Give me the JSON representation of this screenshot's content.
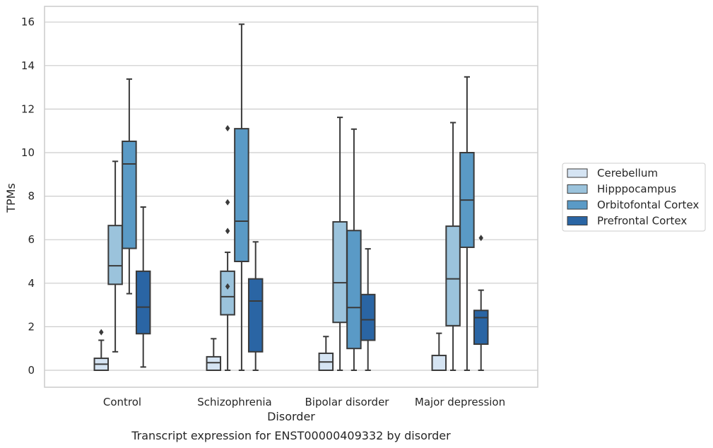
{
  "chart_data": {
    "type": "box",
    "title": "Transcript expression for ENST00000409332 by disorder",
    "xlabel": "Disorder",
    "ylabel": "TPMs",
    "ylim": [
      -0.75,
      16.7
    ],
    "yticks": [
      0,
      2,
      4,
      6,
      8,
      10,
      12,
      14,
      16
    ],
    "grid": true,
    "legend_position": "right",
    "categories": [
      "Control",
      "Schizophrenia",
      "Bipolar disorder",
      "Major depression"
    ],
    "series": [
      {
        "name": "Cerebellum",
        "color": "#d5e4f3",
        "boxes": [
          {
            "whislo": 0.0,
            "q1": 0.0,
            "med": 0.28,
            "q3": 0.55,
            "whishi": 1.38,
            "fliers": [
              1.75
            ]
          },
          {
            "whislo": 0.0,
            "q1": 0.0,
            "med": 0.35,
            "q3": 0.62,
            "whishi": 1.45,
            "fliers": []
          },
          {
            "whislo": 0.0,
            "q1": 0.0,
            "med": 0.38,
            "q3": 0.78,
            "whishi": 1.55,
            "fliers": []
          },
          {
            "whislo": 0.0,
            "q1": 0.0,
            "med": 0.0,
            "q3": 0.68,
            "whishi": 1.7,
            "fliers": []
          }
        ]
      },
      {
        "name": "Hipppocampus",
        "color": "#9bc3dc",
        "boxes": [
          {
            "whislo": 0.85,
            "q1": 3.95,
            "med": 4.8,
            "q3": 6.65,
            "whishi": 9.6,
            "fliers": []
          },
          {
            "whislo": 0.0,
            "q1": 2.55,
            "med": 3.38,
            "q3": 4.55,
            "whishi": 5.42,
            "fliers": [
              3.85,
              6.4,
              7.72,
              11.12
            ]
          },
          {
            "whislo": 0.0,
            "q1": 2.2,
            "med": 4.02,
            "q3": 6.82,
            "whishi": 11.62,
            "fliers": []
          },
          {
            "whislo": 0.0,
            "q1": 2.05,
            "med": 4.2,
            "q3": 6.62,
            "whishi": 11.38,
            "fliers": []
          }
        ]
      },
      {
        "name": "Orbitofontal Cortex",
        "color": "#5a9ac6",
        "boxes": [
          {
            "whislo": 3.52,
            "q1": 5.6,
            "med": 9.48,
            "q3": 10.52,
            "whishi": 13.38,
            "fliers": []
          },
          {
            "whislo": 0.0,
            "q1": 5.0,
            "med": 6.85,
            "q3": 11.1,
            "whishi": 15.9,
            "fliers": []
          },
          {
            "whislo": 0.0,
            "q1": 1.0,
            "med": 2.88,
            "q3": 6.42,
            "whishi": 11.08,
            "fliers": []
          },
          {
            "whislo": 0.0,
            "q1": 5.65,
            "med": 7.82,
            "q3": 10.0,
            "whishi": 13.48,
            "fliers": []
          }
        ]
      },
      {
        "name": "Prefrontal Cortex",
        "color": "#2a65a4",
        "boxes": [
          {
            "whislo": 0.15,
            "q1": 1.68,
            "med": 2.9,
            "q3": 4.55,
            "whishi": 7.5,
            "fliers": []
          },
          {
            "whislo": 0.0,
            "q1": 0.85,
            "med": 3.18,
            "q3": 4.2,
            "whishi": 5.9,
            "fliers": []
          },
          {
            "whislo": 0.0,
            "q1": 1.38,
            "med": 2.32,
            "q3": 3.48,
            "whishi": 5.58,
            "fliers": []
          },
          {
            "whislo": 0.0,
            "q1": 1.2,
            "med": 2.42,
            "q3": 2.75,
            "whishi": 3.68,
            "fliers": [
              6.08
            ]
          }
        ]
      }
    ]
  }
}
